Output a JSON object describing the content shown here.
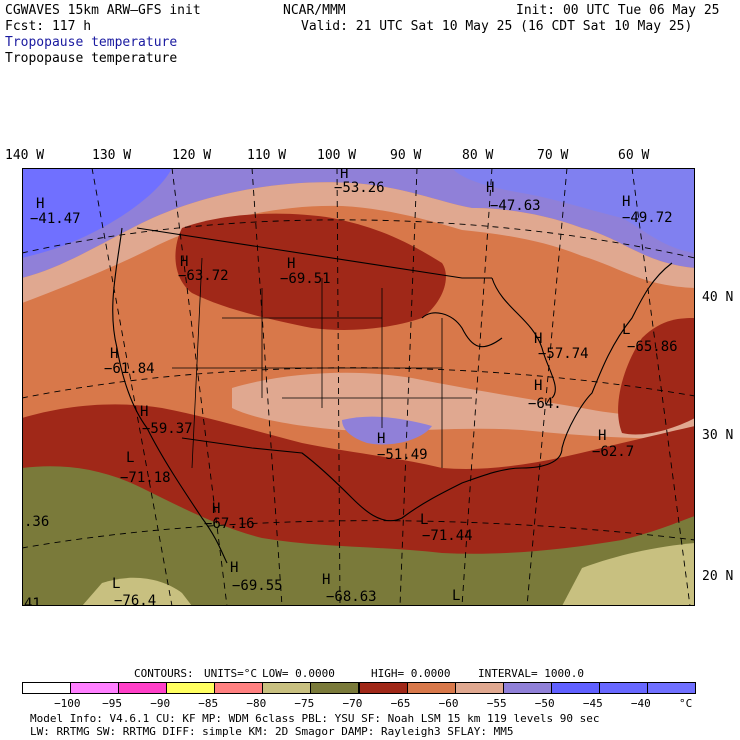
{
  "header": {
    "model": "CGWAVES 15km ARW–GFS init",
    "fcst": "Fcst:  117 h",
    "center": "NCAR/MMM",
    "init": "Init: 00 UTC Tue 06 May 25",
    "valid": "Valid: 21 UTC Sat 10 May 25 (16 CDT Sat 10 May 25)",
    "field_line1": "Tropopause temperature",
    "field_line2": "Tropopause temperature"
  },
  "longitudes": [
    "140 W",
    "130 W",
    "120 W",
    "110 W",
    "100 W",
    "90 W",
    "80 W",
    "70 W",
    "60 W"
  ],
  "latitudes": [
    "40 N",
    "30 N",
    "20 N"
  ],
  "map_labels": [
    {
      "text": "H"
    },
    {
      "text": "−41.47"
    },
    {
      "text": "H"
    },
    {
      "text": "−53.26"
    },
    {
      "text": "H"
    },
    {
      "text": "−47.63"
    },
    {
      "text": "H"
    },
    {
      "text": "−49.72"
    },
    {
      "text": "H"
    },
    {
      "text": "−63.72"
    },
    {
      "text": "H"
    },
    {
      "text": "−69.51"
    },
    {
      "text": "H"
    },
    {
      "text": "−61.84"
    },
    {
      "text": "H"
    },
    {
      "text": "−59.37"
    },
    {
      "text": "L"
    },
    {
      "text": "−71.18"
    },
    {
      "text": "H"
    },
    {
      "text": "−57.74"
    },
    {
      "text": "L"
    },
    {
      "text": "−65.86"
    },
    {
      "text": "H"
    },
    {
      "text": "−64."
    },
    {
      "text": "H"
    },
    {
      "text": "−51.49"
    },
    {
      "text": "H"
    },
    {
      "text": "−62.7"
    },
    {
      "text": "H"
    },
    {
      "text": "−67.16"
    },
    {
      "text": "L"
    },
    {
      "text": "−71.44"
    },
    {
      "text": ".36"
    },
    {
      "text": "H"
    },
    {
      "text": "−69.55"
    },
    {
      "text": "H"
    },
    {
      "text": "−68.63"
    },
    {
      "text": "L"
    },
    {
      "text": "−76.4"
    },
    {
      "text": "L"
    },
    {
      "text": "41"
    }
  ],
  "contours": {
    "label": "CONTOURS:",
    "units": "UNITS=°C",
    "low": "LOW=  0.0000",
    "high": "HIGH=  0.0000",
    "interval": "INTERVAL=   1000.0"
  },
  "colorbar": {
    "colors": [
      "#ffffff",
      "#ff80ff",
      "#ff40c8",
      "#ffff60",
      "#ff8080",
      "#c8c080",
      "#7a7a3a",
      "#a02818",
      "#d8784a",
      "#e0a890",
      "#9080d8",
      "#6060ff",
      "#6868ff",
      "#7070ff"
    ],
    "labels": [
      "−100",
      "−95",
      "−90",
      "−85",
      "−80",
      "−75",
      "−70",
      "−65",
      "−60",
      "−55",
      "−50",
      "−45",
      "−40",
      "°C"
    ]
  },
  "footer": {
    "line1": "Model Info: V4.6.1    CU: KF     MP: WDM 6class  PBL: YSU      SF: Noah LSM     15 km  119 levels  90 sec",
    "line2": "         LW: RRTMG    SW: RRTMG  DIFF: simple KM: 2D Smagor DAMP: Rayleigh3  SFLAY: MM5"
  }
}
